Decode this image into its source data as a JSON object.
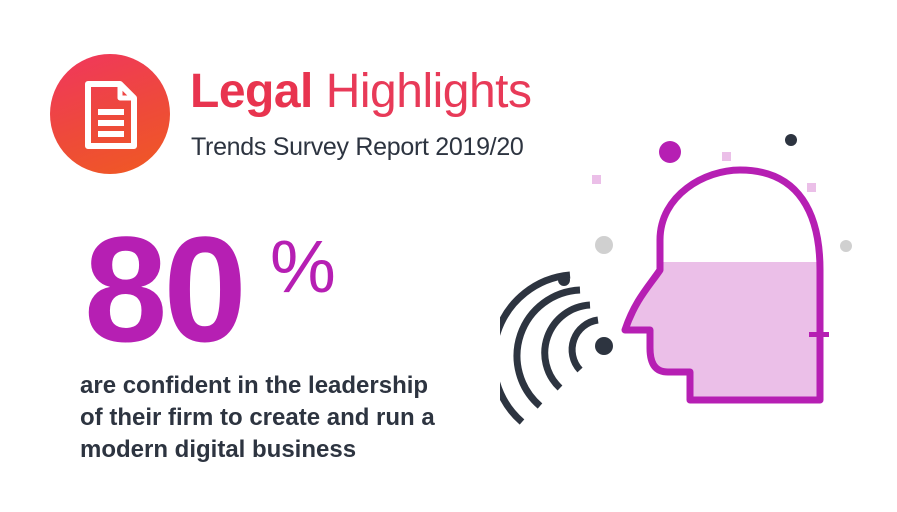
{
  "header": {
    "icon": "document-icon",
    "title_bold": "Legal",
    "title_light": "Highlights",
    "subtitle": "Trends Survey Report 2019/20"
  },
  "stat": {
    "value": "80",
    "unit": "%",
    "description_lines": [
      "are confident in the leadership",
      "of their firm to create and run a",
      "modern digital business"
    ]
  },
  "illustration": {
    "icon": "speaking-head-icon",
    "fill_level": 0.6
  },
  "colors": {
    "brand_red": "#e8344f",
    "brand_orange": "#f05a22",
    "accent_magenta": "#b61fb3",
    "head_fill": "#ebbfe8",
    "dark_text": "#2d3440"
  }
}
